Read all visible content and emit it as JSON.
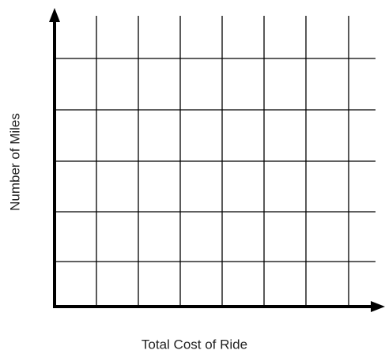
{
  "axes": {
    "x_label": "Total Cost of Ride",
    "y_label": "Number of Miles"
  }
}
